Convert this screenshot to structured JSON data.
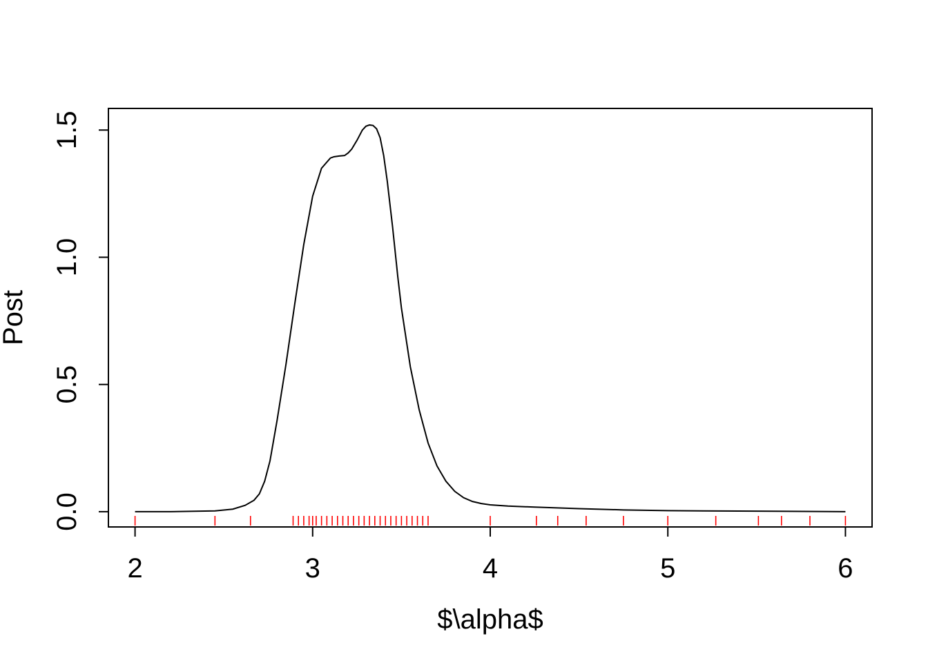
{
  "chart_data": {
    "type": "line",
    "title": "",
    "xlabel": "$\\alpha$",
    "ylabel": "Post",
    "xlim": [
      1.85,
      6.15
    ],
    "ylim": [
      -0.06,
      1.585
    ],
    "xticks": [
      2,
      3,
      4,
      5,
      6
    ],
    "xtick_labels": [
      "2",
      "3",
      "4",
      "5",
      "6"
    ],
    "yticks": [
      0.0,
      0.5,
      1.0,
      1.5
    ],
    "ytick_labels": [
      "0.0",
      "0.5",
      "1.0",
      "1.5"
    ],
    "grid": false,
    "legend": "none",
    "series": [
      {
        "color": "#000000",
        "x": [
          2.0,
          2.2,
          2.45,
          2.55,
          2.62,
          2.67,
          2.7,
          2.73,
          2.76,
          2.8,
          2.85,
          2.9,
          2.95,
          3.0,
          3.05,
          3.1,
          3.12,
          3.15,
          3.18,
          3.2,
          3.22,
          3.25,
          3.28,
          3.3,
          3.32,
          3.34,
          3.36,
          3.38,
          3.4,
          3.42,
          3.45,
          3.48,
          3.5,
          3.55,
          3.6,
          3.65,
          3.7,
          3.75,
          3.8,
          3.85,
          3.9,
          3.95,
          4.0,
          4.1,
          4.25,
          4.5,
          4.75,
          5.0,
          5.5,
          6.0
        ],
        "y": [
          0.0,
          0.0,
          0.003,
          0.01,
          0.025,
          0.045,
          0.07,
          0.12,
          0.2,
          0.36,
          0.58,
          0.82,
          1.05,
          1.24,
          1.35,
          1.39,
          1.395,
          1.398,
          1.4,
          1.41,
          1.425,
          1.46,
          1.5,
          1.515,
          1.52,
          1.518,
          1.505,
          1.47,
          1.4,
          1.3,
          1.12,
          0.92,
          0.8,
          0.57,
          0.4,
          0.27,
          0.18,
          0.12,
          0.08,
          0.055,
          0.04,
          0.032,
          0.027,
          0.022,
          0.018,
          0.012,
          0.007,
          0.004,
          0.002,
          0.0
        ]
      }
    ],
    "rug": {
      "color": "#ff0000",
      "x": [
        2.0,
        2.45,
        2.65,
        2.89,
        2.92,
        2.95,
        2.98,
        3.0,
        3.02,
        3.05,
        3.08,
        3.11,
        3.14,
        3.17,
        3.2,
        3.23,
        3.26,
        3.29,
        3.32,
        3.35,
        3.38,
        3.41,
        3.44,
        3.47,
        3.5,
        3.53,
        3.56,
        3.59,
        3.62,
        3.65,
        4.0,
        4.26,
        4.38,
        4.54,
        4.75,
        5.0,
        5.27,
        5.51,
        5.64,
        5.8,
        6.0
      ]
    }
  }
}
